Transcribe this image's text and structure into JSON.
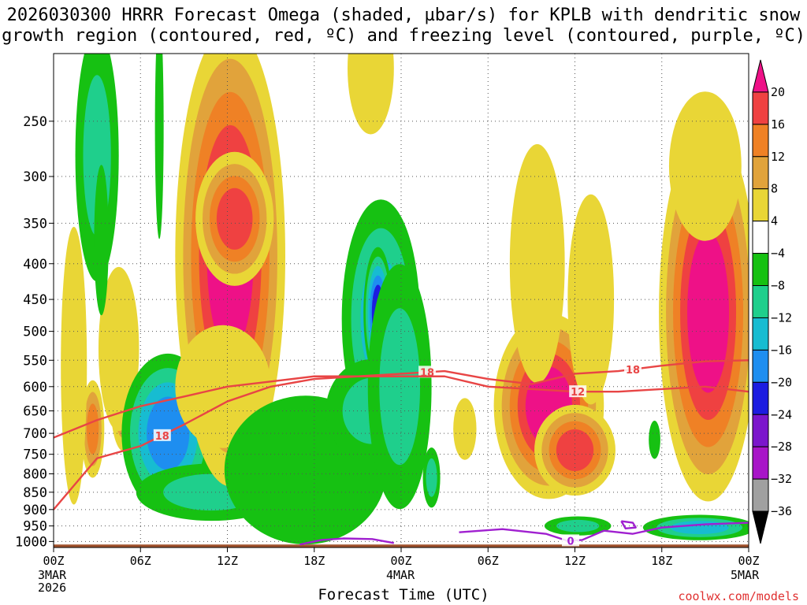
{
  "title": {
    "line1": "2026030300 HRRR Forecast Omega (shaded, µbar/s) for KPLB with dendritic snow",
    "line2": "growth region (contoured, red, ºC) and freezing level (contoured, purple, ºC)"
  },
  "credit": "coolwx.com/models",
  "chart_data": {
    "type": "heatmap",
    "title": "2026030300 HRRR Forecast Omega (shaded, µbar/s) for KPLB with dendritic snow growth region (contoured, red, ºC) and freezing level (contoured, purple, ºC)",
    "xlabel": "Forecast Time (UTC)",
    "ylabel": "",
    "x_ticks": [
      "00Z",
      "06Z",
      "12Z",
      "18Z",
      "00Z",
      "06Z",
      "12Z",
      "18Z",
      "00Z"
    ],
    "x_hours": [
      0,
      6,
      12,
      18,
      24,
      30,
      36,
      42,
      48
    ],
    "x_date_labels": [
      {
        "tick": 0,
        "line1": "3MAR",
        "line2": "2026"
      },
      {
        "tick": 4,
        "line1": "4MAR"
      },
      {
        "tick": 8,
        "line1": "5MAR"
      }
    ],
    "y_ticks": [
      250,
      300,
      350,
      400,
      450,
      500,
      550,
      600,
      650,
      700,
      750,
      800,
      850,
      900,
      950,
      1000
    ],
    "y_range_hpa": [
      200,
      1020
    ],
    "colorbar": {
      "labels": [
        "20",
        "16",
        "12",
        "8",
        "4",
        "−4",
        "−8",
        "−12",
        "−16",
        "−20",
        "−24",
        "−28",
        "−32",
        "−36"
      ],
      "bins": [
        {
          "range": "20+",
          "color": "#ee1187"
        },
        {
          "range": "16-20",
          "color": "#ef4141"
        },
        {
          "range": "12-16",
          "color": "#ef8125"
        },
        {
          "range": "8-12",
          "color": "#e1a33b"
        },
        {
          "range": "4-8",
          "color": "#e9d636"
        },
        {
          "range": "-4-4",
          "color": "#ffffff"
        },
        {
          "range": "-8--4",
          "color": "#16c112"
        },
        {
          "range": "-12--8",
          "color": "#1fcf8c"
        },
        {
          "range": "-16--12",
          "color": "#17bcd1"
        },
        {
          "range": "-20--16",
          "color": "#1e8ef0"
        },
        {
          "range": "-24--20",
          "color": "#1c1ce0"
        },
        {
          "range": "-28--24",
          "color": "#7b16cc"
        },
        {
          "range": "-32--28",
          "color": "#a815c8"
        },
        {
          "range": "-36--32",
          "color": "#a0a0a0"
        },
        {
          "range": "below",
          "color": "#000000"
        }
      ]
    },
    "shading": {
      "palette": [
        "#ee1187",
        "#ef4141",
        "#ef8125",
        "#e1a33b",
        "#e9d636",
        "#16c112",
        "#1fcf8c",
        "#17bcd1",
        "#1e8ef0",
        "#1c1ce0"
      ],
      "cells": [
        {
          "t": 2.7,
          "p": 690,
          "dt": 0.8,
          "dp": 110,
          "levels": [
            4,
            8,
            12
          ]
        },
        {
          "t": 1.4,
          "p": 560,
          "dt": 0.9,
          "dp": 240,
          "levels": [
            4
          ]
        },
        {
          "t": 4.8,
          "p": 620,
          "dt": 0.9,
          "dp": 110,
          "levels": [
            4,
            8,
            12
          ]
        },
        {
          "t": 4.5,
          "p": 530,
          "dt": 1.4,
          "dp": 140,
          "levels": [
            4
          ]
        },
        {
          "t": 3.0,
          "p": 280,
          "dt": 1.5,
          "dp": 110,
          "levels": [
            -4,
            -8
          ]
        },
        {
          "t": 3.3,
          "p": 370,
          "dt": 0.5,
          "dp": 90,
          "levels": [
            -4
          ]
        },
        {
          "t": 7.9,
          "p": 700,
          "dt": 3.2,
          "dp": 180,
          "levels": [
            -4,
            -8,
            -12,
            -16
          ]
        },
        {
          "t": 10.9,
          "p": 850,
          "dt": 5.2,
          "dp": 80,
          "levels": [
            -4,
            -8
          ]
        },
        {
          "t": 7.3,
          "p": 255,
          "dt": 0.3,
          "dp": 90,
          "levels": [
            -4
          ]
        },
        {
          "t": 12.2,
          "p": 390,
          "dt": 3.8,
          "dp": 250,
          "levels": [
            4,
            8,
            12,
            16,
            20
          ]
        },
        {
          "t": 12.5,
          "p": 345,
          "dt": 2.7,
          "dp": 75,
          "levels": [
            4,
            8,
            12,
            16
          ]
        },
        {
          "t": 11.7,
          "p": 600,
          "dt": 3.3,
          "dp": 120,
          "levels": [
            4
          ]
        },
        {
          "t": 17.4,
          "p": 790,
          "dt": 5.6,
          "dp": 190,
          "levels": [
            -4
          ]
        },
        {
          "t": 22.6,
          "p": 480,
          "dt": 2.7,
          "dp": 180,
          "levels": [
            -4,
            -8,
            -12
          ]
        },
        {
          "t": 22.0,
          "p": 650,
          "dt": 3.2,
          "dp": 110,
          "levels": [
            -4,
            -8
          ]
        },
        {
          "t": 22.4,
          "p": 470,
          "dt": 1.0,
          "dp": 100,
          "levels": [
            -4,
            -8,
            -12,
            -16,
            -20
          ]
        },
        {
          "t": 23.9,
          "p": 600,
          "dt": 2.2,
          "dp": 230,
          "levels": [
            -4,
            -8
          ]
        },
        {
          "t": 21.9,
          "p": 210,
          "dt": 1.6,
          "dp": 45,
          "levels": [
            4
          ]
        },
        {
          "t": 26.1,
          "p": 810,
          "dt": 0.6,
          "dp": 80,
          "levels": [
            -4,
            -8
          ]
        },
        {
          "t": 28.4,
          "p": 690,
          "dt": 0.8,
          "dp": 70,
          "levels": [
            4
          ]
        },
        {
          "t": 34.2,
          "p": 640,
          "dt": 3.8,
          "dp": 190,
          "levels": [
            4,
            8,
            12,
            16,
            20
          ]
        },
        {
          "t": 33.4,
          "p": 400,
          "dt": 1.9,
          "dp": 150,
          "levels": [
            4
          ]
        },
        {
          "t": 37.1,
          "p": 450,
          "dt": 1.6,
          "dp": 150,
          "levels": [
            4
          ]
        },
        {
          "t": 36.0,
          "p": 740,
          "dt": 2.8,
          "dp": 110,
          "levels": [
            4,
            8,
            12,
            16
          ]
        },
        {
          "t": 36.2,
          "p": 950,
          "dt": 2.3,
          "dp": 30,
          "levels": [
            -4,
            -8
          ]
        },
        {
          "t": 45.2,
          "p": 470,
          "dt": 3.4,
          "dp": 260,
          "levels": [
            4,
            8,
            12,
            16,
            20
          ]
        },
        {
          "t": 45.0,
          "p": 290,
          "dt": 2.5,
          "dp": 70,
          "levels": [
            4
          ]
        },
        {
          "t": 44.6,
          "p": 955,
          "dt": 3.9,
          "dp": 40,
          "levels": [
            -4,
            -8,
            -12
          ]
        },
        {
          "t": 41.5,
          "p": 715,
          "dt": 0.4,
          "dp": 45,
          "levels": [
            -4
          ]
        }
      ]
    },
    "contours": [
      {
        "name": "dgz-minus18",
        "label": "18",
        "color": "#e84545",
        "hours": [
          0,
          3,
          6,
          9,
          12,
          15,
          18,
          21,
          24,
          27,
          30,
          33,
          36,
          39,
          42,
          45,
          48
        ],
        "pressure_hpa": [
          900,
          760,
          730,
          680,
          630,
          600,
          585,
          580,
          575,
          570,
          585,
          595,
          575,
          570,
          560,
          552,
          550
        ],
        "label_hours": [
          7.5,
          25.8,
          40.0
        ]
      },
      {
        "name": "dgz-minus12",
        "label": "12",
        "color": "#e84545",
        "hours": [
          0,
          3,
          6,
          9,
          12,
          15,
          18,
          21,
          24,
          27,
          30,
          33,
          36,
          39,
          42,
          45,
          48
        ],
        "pressure_hpa": [
          710,
          670,
          640,
          620,
          600,
          590,
          580,
          580,
          580,
          580,
          600,
          605,
          610,
          610,
          605,
          600,
          610
        ],
        "label_hours": [
          36.2
        ]
      },
      {
        "name": "freezing-level-0",
        "label": "0",
        "color": "#a020d0",
        "hours": [
          17.0,
          18.5,
          20,
          22,
          23.5
        ],
        "pressure_hpa": [
          1010,
          995,
          990,
          992,
          1005
        ],
        "label_hours": []
      },
      {
        "name": "freezing-level-0b",
        "label": "0",
        "color": "#a020d0",
        "hours": [
          28,
          31,
          34,
          35.5,
          36.5,
          38,
          40,
          42,
          45,
          48
        ],
        "pressure_hpa": [
          970,
          960,
          975,
          998,
          995,
          965,
          975,
          955,
          945,
          940
        ],
        "label_hours": [
          35.7
        ]
      },
      {
        "name": "freezing-level-loop",
        "label": "",
        "color": "#a020d0",
        "hours": [
          39.2,
          40.0,
          40.2,
          39.5,
          39.2
        ],
        "pressure_hpa": [
          935,
          940,
          955,
          958,
          935
        ],
        "label_hours": []
      }
    ],
    "terrain": {
      "from_pressure_hpa": 1010,
      "color": "#a0522d"
    }
  }
}
